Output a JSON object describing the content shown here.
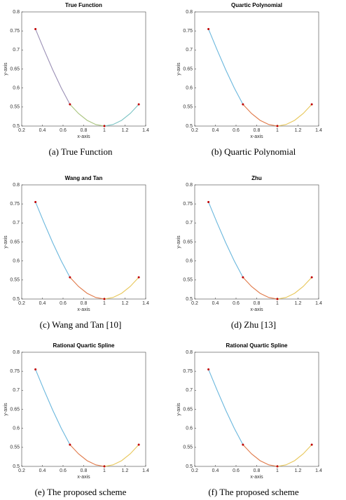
{
  "chart_data": [
    {
      "type": "line",
      "title": "True Function",
      "xlabel": "x-axis",
      "ylabel": "y-axis",
      "caption": "(a) True Function",
      "xlim": [
        0.2,
        1.4
      ],
      "ylim": [
        0.5,
        0.8
      ],
      "xticks": [
        0.2,
        0.4,
        0.6,
        0.8,
        1,
        1.2,
        1.4
      ],
      "yticks": [
        0.5,
        0.55,
        0.6,
        0.65,
        0.7,
        0.75,
        0.8
      ],
      "series": [
        {
          "color": "#9a8fb5",
          "x": [
            0.333,
            0.417,
            0.5,
            0.583,
            0.667
          ],
          "values": [
            0.755,
            0.7,
            0.648,
            0.6,
            0.557
          ]
        },
        {
          "color": "#a9c47e",
          "x": [
            0.667,
            0.75,
            0.833,
            0.917,
            1
          ],
          "values": [
            0.557,
            0.533,
            0.515,
            0.504,
            0.5
          ]
        },
        {
          "color": "#7cc4c4",
          "x": [
            1,
            1.083,
            1.167,
            1.25,
            1.333
          ],
          "values": [
            0.5,
            0.504,
            0.515,
            0.533,
            0.557
          ]
        }
      ],
      "points": {
        "color": "#c00000",
        "x": [
          0.333,
          0.667,
          1,
          1.333
        ],
        "values": [
          0.755,
          0.557,
          0.5,
          0.557
        ]
      }
    },
    {
      "type": "line",
      "title": "Quartic Polynomial",
      "xlabel": "x-axis",
      "ylabel": "y-axis",
      "caption": "(b) Quartic Polynomial",
      "xlim": [
        0.2,
        1.4
      ],
      "ylim": [
        0.5,
        0.8
      ],
      "xticks": [
        0.2,
        0.4,
        0.6,
        0.8,
        1,
        1.2,
        1.4
      ],
      "yticks": [
        0.5,
        0.55,
        0.6,
        0.65,
        0.7,
        0.75,
        0.8
      ],
      "series": [
        {
          "color": "#6ab7dd",
          "x": [
            0.333,
            0.417,
            0.5,
            0.583,
            0.667
          ],
          "values": [
            0.755,
            0.7,
            0.648,
            0.6,
            0.557
          ]
        },
        {
          "color": "#e07a4a",
          "x": [
            0.667,
            0.75,
            0.833,
            0.917,
            1
          ],
          "values": [
            0.557,
            0.533,
            0.515,
            0.504,
            0.5
          ]
        },
        {
          "color": "#e8c75a",
          "x": [
            1,
            1.083,
            1.167,
            1.25,
            1.333
          ],
          "values": [
            0.5,
            0.504,
            0.515,
            0.533,
            0.557
          ]
        }
      ],
      "points": {
        "color": "#c00000",
        "x": [
          0.333,
          0.667,
          1,
          1.333
        ],
        "values": [
          0.755,
          0.557,
          0.5,
          0.557
        ]
      }
    },
    {
      "type": "line",
      "title": "Wang and Tan",
      "xlabel": "x-axis",
      "ylabel": "y-axis",
      "caption": "(c) Wang and Tan [10]",
      "xlim": [
        0.2,
        1.4
      ],
      "ylim": [
        0.5,
        0.8
      ],
      "xticks": [
        0.2,
        0.4,
        0.6,
        0.8,
        1,
        1.2,
        1.4
      ],
      "yticks": [
        0.5,
        0.55,
        0.6,
        0.65,
        0.7,
        0.75,
        0.8
      ],
      "series": [
        {
          "color": "#6ab7dd",
          "x": [
            0.333,
            0.417,
            0.5,
            0.583,
            0.667
          ],
          "values": [
            0.755,
            0.7,
            0.648,
            0.6,
            0.557
          ]
        },
        {
          "color": "#e07a4a",
          "x": [
            0.667,
            0.75,
            0.833,
            0.917,
            1
          ],
          "values": [
            0.557,
            0.533,
            0.515,
            0.504,
            0.5
          ]
        },
        {
          "color": "#e8c75a",
          "x": [
            1,
            1.083,
            1.167,
            1.25,
            1.333
          ],
          "values": [
            0.5,
            0.504,
            0.515,
            0.533,
            0.557
          ]
        }
      ],
      "points": {
        "color": "#c00000",
        "x": [
          0.333,
          0.667,
          1,
          1.333
        ],
        "values": [
          0.755,
          0.557,
          0.5,
          0.557
        ]
      }
    },
    {
      "type": "line",
      "title": "Zhu",
      "xlabel": "x-axis",
      "ylabel": "y-axis",
      "caption": "(d) Zhu [13]",
      "xlim": [
        0.2,
        1.4
      ],
      "ylim": [
        0.5,
        0.8
      ],
      "xticks": [
        0.2,
        0.4,
        0.6,
        0.8,
        1,
        1.2,
        1.4
      ],
      "yticks": [
        0.5,
        0.55,
        0.6,
        0.65,
        0.7,
        0.75,
        0.8
      ],
      "series": [
        {
          "color": "#6ab7dd",
          "x": [
            0.333,
            0.417,
            0.5,
            0.583,
            0.667
          ],
          "values": [
            0.755,
            0.7,
            0.648,
            0.6,
            0.557
          ]
        },
        {
          "color": "#e07a4a",
          "x": [
            0.667,
            0.75,
            0.833,
            0.917,
            1
          ],
          "values": [
            0.557,
            0.533,
            0.515,
            0.504,
            0.5
          ]
        },
        {
          "color": "#e8c75a",
          "x": [
            1,
            1.083,
            1.167,
            1.25,
            1.333
          ],
          "values": [
            0.5,
            0.504,
            0.515,
            0.533,
            0.557
          ]
        }
      ],
      "points": {
        "color": "#c00000",
        "x": [
          0.333,
          0.667,
          1,
          1.333
        ],
        "values": [
          0.755,
          0.557,
          0.5,
          0.557
        ]
      }
    },
    {
      "type": "line",
      "title": "Rational Quartic Spline",
      "xlabel": "x-axis",
      "ylabel": "y-axis",
      "caption": "(e) The proposed scheme",
      "xlim": [
        0.2,
        1.4
      ],
      "ylim": [
        0.5,
        0.8
      ],
      "xticks": [
        0.2,
        0.4,
        0.6,
        0.8,
        1,
        1.2,
        1.4
      ],
      "yticks": [
        0.5,
        0.55,
        0.6,
        0.65,
        0.7,
        0.75,
        0.8
      ],
      "series": [
        {
          "color": "#6ab7dd",
          "x": [
            0.333,
            0.417,
            0.5,
            0.583,
            0.667
          ],
          "values": [
            0.755,
            0.7,
            0.648,
            0.6,
            0.557
          ]
        },
        {
          "color": "#e07a4a",
          "x": [
            0.667,
            0.75,
            0.833,
            0.917,
            1
          ],
          "values": [
            0.557,
            0.533,
            0.515,
            0.504,
            0.5
          ]
        },
        {
          "color": "#e8c75a",
          "x": [
            1,
            1.083,
            1.167,
            1.25,
            1.333
          ],
          "values": [
            0.5,
            0.504,
            0.515,
            0.533,
            0.557
          ]
        }
      ],
      "points": {
        "color": "#c00000",
        "x": [
          0.333,
          0.667,
          1,
          1.333
        ],
        "values": [
          0.755,
          0.557,
          0.5,
          0.557
        ]
      }
    },
    {
      "type": "line",
      "title": "Rational Quartic Spline",
      "xlabel": "x-axis",
      "ylabel": "y-axis",
      "caption": "(f) The proposed scheme",
      "xlim": [
        0.2,
        1.4
      ],
      "ylim": [
        0.5,
        0.8
      ],
      "xticks": [
        0.2,
        0.4,
        0.6,
        0.8,
        1,
        1.2,
        1.4
      ],
      "yticks": [
        0.5,
        0.55,
        0.6,
        0.65,
        0.7,
        0.75,
        0.8
      ],
      "series": [
        {
          "color": "#6ab7dd",
          "x": [
            0.333,
            0.417,
            0.5,
            0.583,
            0.667
          ],
          "values": [
            0.755,
            0.7,
            0.648,
            0.6,
            0.557
          ]
        },
        {
          "color": "#e07a4a",
          "x": [
            0.667,
            0.75,
            0.833,
            0.917,
            1
          ],
          "values": [
            0.557,
            0.533,
            0.515,
            0.504,
            0.5
          ]
        },
        {
          "color": "#e8c75a",
          "x": [
            1,
            1.083,
            1.167,
            1.25,
            1.333
          ],
          "values": [
            0.5,
            0.504,
            0.515,
            0.533,
            0.557
          ]
        }
      ],
      "points": {
        "color": "#c00000",
        "x": [
          0.333,
          0.667,
          1,
          1.333
        ],
        "values": [
          0.755,
          0.557,
          0.5,
          0.557
        ]
      }
    }
  ]
}
